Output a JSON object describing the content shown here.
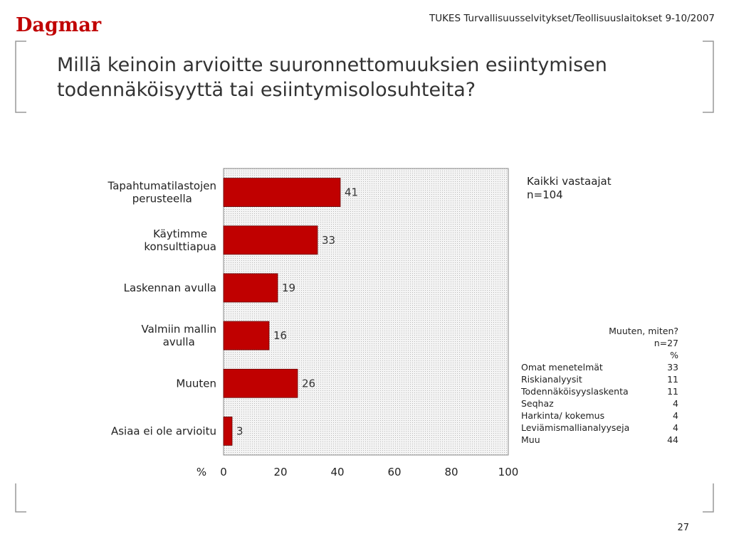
{
  "logo": "Dagmar",
  "header": "TUKES Turvallisuusselvitykset/Teollisuuslaitokset 9-10/2007",
  "page_number": "27",
  "chart_data": {
    "type": "bar",
    "orientation": "horizontal",
    "title": "Millä keinoin arvioitte suuronnettomuuksien esiintymisen\ntodennäköisyyttä tai esiintymisolosuhteita?",
    "categories": [
      "Tapahtumatilastojen\nperusteella",
      "Käytimme\nkonsulttiapua",
      "Laskennan avulla",
      "Valmiin mallin\navulla",
      "Muuten",
      "Asiaa ei ole arvioitu"
    ],
    "values": [
      41,
      33,
      19,
      16,
      26,
      3
    ],
    "color": "#c00000",
    "xlim": [
      0,
      100
    ],
    "xticks": [
      0,
      20,
      40,
      60,
      80,
      100
    ],
    "x_label": "%",
    "grid": false,
    "annotation": "Kaikki vastaajat\nn=104"
  },
  "side_table": {
    "title": "Muuten, miten?",
    "n": "n=27",
    "unit": "%",
    "rows": [
      [
        "Omat menetelmät",
        33
      ],
      [
        "Riskianalyysit",
        11
      ],
      [
        "Todennäköisyyslaskenta",
        11
      ],
      [
        "Seqhaz",
        4
      ],
      [
        "Harkinta/ kokemus",
        4
      ],
      [
        "Leviämismallianalyyseja",
        4
      ],
      [
        "Muu",
        44
      ]
    ]
  }
}
